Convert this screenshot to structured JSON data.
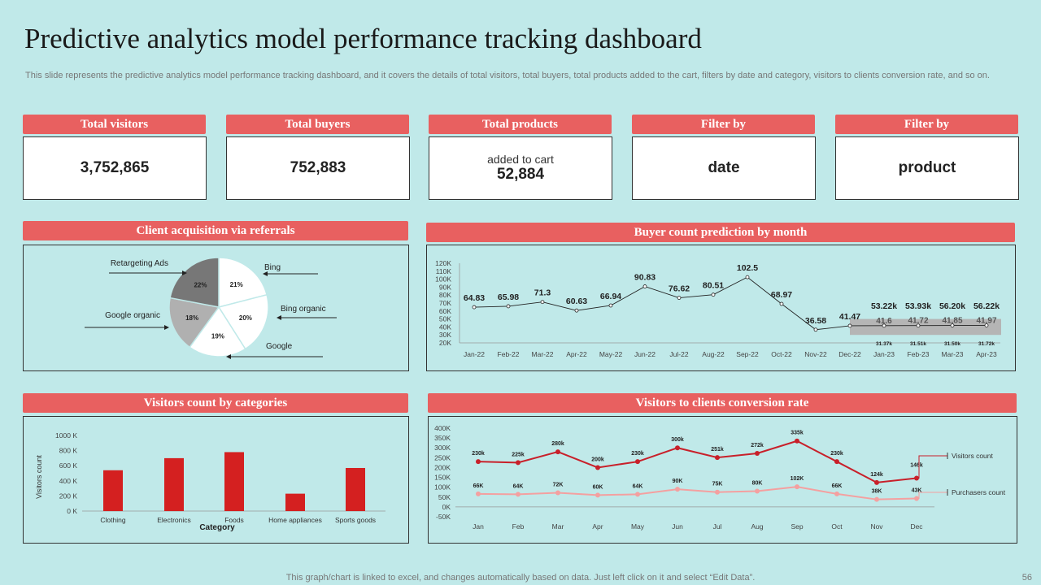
{
  "title": "Predictive analytics model performance tracking dashboard",
  "subtitle": "This slide represents the predictive analytics model performance tracking dashboard, and it covers the details of total visitors, total buyers, total products added to the cart, filters by date and category, visitors to clients conversion rate, and so on.",
  "kpis": [
    {
      "header": "Total visitors",
      "value": "3,752,865",
      "sub": ""
    },
    {
      "header": "Total buyers",
      "value": "752,883",
      "sub": ""
    },
    {
      "header": "Total products",
      "value": "52,884",
      "sub": "added to cart"
    },
    {
      "header": "Filter by",
      "value": "date",
      "sub": ""
    },
    {
      "header": "Filter by",
      "value": "product",
      "sub": ""
    }
  ],
  "panels": {
    "pie": "Client acquisition via referrals",
    "buyer": "Buyer count prediction by month",
    "bar": "Visitors count by categories",
    "conv": "Visitors to clients conversion rate"
  },
  "footer": "This graph/chart is linked to excel, and changes automatically based on data. Just left click on it and select “Edit Data”.",
  "page_number": "56",
  "colors": {
    "accent": "#e86060",
    "background": "#c0e9e9",
    "bar": "#d42020",
    "line_dark": "#c8202a",
    "line_light": "#f4a0a0"
  },
  "chart_data": [
    {
      "type": "pie",
      "title": "Client acquisition via referrals",
      "slices": [
        {
          "label": "Bing",
          "value": 21,
          "display": "21%",
          "color": "#ffffff"
        },
        {
          "label": "Bing organic",
          "value": 20,
          "display": "20%",
          "color": "#ffffff"
        },
        {
          "label": "Google",
          "value": 19,
          "display": "19%",
          "color": "#ffffff"
        },
        {
          "label": "Google organic",
          "value": 18,
          "display": "18%",
          "color": "#b0b0b0"
        },
        {
          "label": "Retargeting Ads",
          "value": 22,
          "display": "22%",
          "color": "#777777"
        }
      ]
    },
    {
      "type": "line",
      "title": "Buyer count prediction by month",
      "categories": [
        "Jan-22",
        "Feb-22",
        "Mar-22",
        "Apr-22",
        "May-22",
        "Jun-22",
        "Jul-22",
        "Aug-22",
        "Sep-22",
        "Oct-22",
        "Nov-22",
        "Dec-22",
        "Jan-23",
        "Feb-23",
        "Mar-23",
        "Apr-23"
      ],
      "actual": [
        64.83,
        65.98,
        71.3,
        60.63,
        66.94,
        90.83,
        76.62,
        80.51,
        102.5,
        68.97,
        36.58,
        41.47
      ],
      "actual_labels": [
        "64.83",
        "65.98",
        "71.3",
        "60.63",
        "66.94",
        "90.83",
        "76.62",
        "80.51",
        "102.5",
        "68.97",
        "36.58",
        "41.47"
      ],
      "forecast": [
        41.6,
        41.72,
        41.85,
        41.97
      ],
      "forecast_labels": [
        "41.6",
        "41.72",
        "41.85",
        "41.97"
      ],
      "upper_labels": [
        "53.22k",
        "53.93k",
        "56.20k",
        "56.22k"
      ],
      "lower_labels": [
        "31.37k",
        "31.51k",
        "31.50k",
        "31.72k"
      ],
      "yticks": [
        "120K",
        "110K",
        "100K",
        "90K",
        "80K",
        "70K",
        "60K",
        "50K",
        "40K",
        "30K",
        "20K"
      ],
      "ylim": [
        20,
        120
      ]
    },
    {
      "type": "bar",
      "title": "Visitors count by categories",
      "categories": [
        "Clothing",
        "Electronics",
        "Foods",
        "Home appliances",
        "Sports goods"
      ],
      "values": [
        540,
        700,
        780,
        230,
        570
      ],
      "ylim": [
        0,
        1000
      ],
      "yticks": [
        "1000 K",
        "800 K",
        "600 K",
        "400 K",
        "200 K",
        "0 K"
      ],
      "xlabel": "Category",
      "ylabel": "Visitors count"
    },
    {
      "type": "line",
      "title": "Visitors to clients conversion rate",
      "categories": [
        "Jan",
        "Feb",
        "Mar",
        "Apr",
        "May",
        "Jun",
        "Jul",
        "Aug",
        "Sep",
        "Oct",
        "Nov",
        "Dec"
      ],
      "series": [
        {
          "name": "Visitors count",
          "values": [
            230,
            225,
            280,
            200,
            230,
            300,
            251,
            272,
            335,
            230,
            124,
            146
          ],
          "labels": [
            "230k",
            "225k",
            "280k",
            "200k",
            "230k",
            "300k",
            "251k",
            "272k",
            "335k",
            "230k",
            "124k",
            "146k"
          ]
        },
        {
          "name": "Purchasers count",
          "values": [
            66,
            64,
            72,
            60,
            64,
            90,
            75,
            80,
            102,
            66,
            38,
            43
          ],
          "labels": [
            "66K",
            "64K",
            "72K",
            "60K",
            "64K",
            "90K",
            "75K",
            "80K",
            "102K",
            "66K",
            "38K",
            "43K"
          ]
        }
      ],
      "yticks": [
        "400K",
        "350K",
        "300K",
        "250K",
        "200K",
        "150K",
        "100K",
        "50K",
        "0K",
        "-50K"
      ],
      "ylim": [
        -50,
        400
      ]
    }
  ]
}
